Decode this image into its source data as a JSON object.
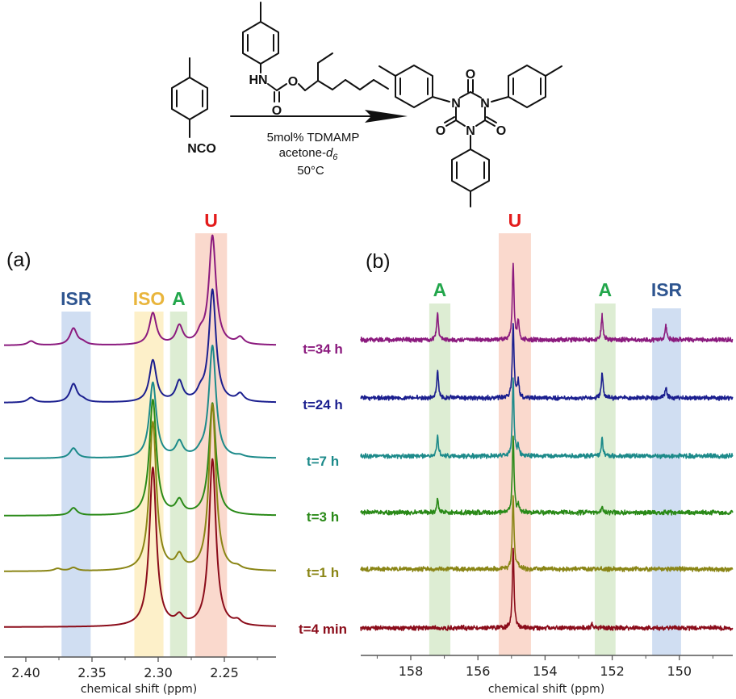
{
  "scheme": {
    "reactant_label": "NCO",
    "carbamate_atoms": {
      "nh": "HN",
      "o_ester": "O",
      "o_carbonyl": "O"
    },
    "product_atoms": {
      "n": "N",
      "o": "O"
    },
    "conditions": [
      "5mol% TDMAMP",
      "acetone-",
      "50°C"
    ],
    "solvent_subscript": "d",
    "solvent_subscript_index": "6"
  },
  "colors": {
    "ISR": "#2e5590",
    "ISO": "#e9b53c",
    "A": "#22a64b",
    "U": "#e31b1b",
    "ISR_band": "#c8d8f0",
    "ISO_band": "#fdedbf",
    "A_band": "#d7eacb",
    "U_band": "#f9d2c4"
  },
  "time_labels": [
    {
      "label": "t=34 h",
      "color": "#8b1a7e"
    },
    {
      "label": "t=24 h",
      "color": "#1b1f8f"
    },
    {
      "label": "t=7 h",
      "color": "#1c8a8a"
    },
    {
      "label": "t=3 h",
      "color": "#2a8a18"
    },
    {
      "label": "t=1 h",
      "color": "#8a8515"
    },
    {
      "label": "t=4 min",
      "color": "#8b0c1a"
    }
  ],
  "chart_data": [
    {
      "type": "line",
      "panel_label": "(a)",
      "xlabel": "chemical shift (ppm)",
      "ylabel": "",
      "xlim": [
        2.4165,
        2.211
      ],
      "x_reversed": true,
      "y_axis_shown": false,
      "ticks": [
        "2.40",
        "2.35",
        "2.30",
        "2.25"
      ],
      "tick_values": [
        2.4,
        2.35,
        2.3,
        2.25
      ],
      "minor_tick_values": [
        2.375,
        2.325,
        2.275,
        2.225
      ],
      "regions": [
        {
          "label": "ISR",
          "range": [
            2.373,
            2.351
          ],
          "color_key": "ISR"
        },
        {
          "label": "ISO",
          "range": [
            2.318,
            2.296
          ],
          "color_key": "ISO"
        },
        {
          "label": "A",
          "range": [
            2.291,
            2.278
          ],
          "color_key": "A"
        },
        {
          "label": "U",
          "range": [
            2.272,
            2.248
          ],
          "color_key": "U"
        }
      ],
      "peak_width_ppm": 0.0032,
      "series": [
        {
          "name": "t=34 h",
          "peaks": [
            [
              2.259,
              65
            ],
            [
              2.304,
              19
            ],
            [
              2.284,
              11
            ],
            [
              2.364,
              10
            ],
            [
              2.268,
              5
            ],
            [
              2.396,
              2.5
            ],
            [
              2.238,
              4
            ],
            [
              2.357,
              1.5
            ]
          ]
        },
        {
          "name": "t=24 h",
          "peaks": [
            [
              2.259,
              67
            ],
            [
              2.304,
              25
            ],
            [
              2.284,
              12
            ],
            [
              2.364,
              11
            ],
            [
              2.268,
              4.5
            ],
            [
              2.396,
              3
            ],
            [
              2.238,
              4.5
            ],
            [
              2.357,
              1.5
            ]
          ]
        },
        {
          "name": "t=7 h",
          "peaks": [
            [
              2.259,
              67
            ],
            [
              2.304,
              45
            ],
            [
              2.284,
              9
            ],
            [
              2.364,
              6
            ],
            [
              2.268,
              2
            ],
            [
              2.238,
              1
            ]
          ]
        },
        {
          "name": "t=3 h",
          "peaks": [
            [
              2.259,
              67
            ],
            [
              2.304,
              69
            ],
            [
              2.284,
              8
            ],
            [
              2.364,
              4.5
            ]
          ]
        },
        {
          "name": "t=1 h",
          "peaks": [
            [
              2.259,
              99.5
            ],
            [
              2.304,
              89
            ],
            [
              2.284,
              8
            ],
            [
              2.364,
              2
            ],
            [
              2.376,
              1.5
            ],
            [
              2.24,
              1.5
            ]
          ]
        },
        {
          "name": "t=4 min",
          "peaks": [
            [
              2.259,
              100
            ],
            [
              2.304,
              95
            ],
            [
              2.284,
              5
            ],
            [
              2.24,
              2.5
            ]
          ]
        }
      ]
    },
    {
      "type": "line",
      "panel_label": "(b)",
      "xlabel": "chemical shift (ppm)",
      "ylabel": "",
      "xlim": [
        159.5,
        148.4
      ],
      "x_reversed": true,
      "y_axis_shown": false,
      "ticks": [
        "158",
        "156",
        "154",
        "152",
        "150"
      ],
      "tick_values": [
        158,
        156,
        154,
        152,
        150
      ],
      "minor_tick_values": [
        159,
        157,
        155,
        153,
        151,
        149
      ],
      "regions": [
        {
          "label": "A",
          "range": [
            157.45,
            156.82
          ],
          "color_key": "A"
        },
        {
          "label": "U",
          "range": [
            155.38,
            154.42
          ],
          "color_key": "U"
        },
        {
          "label": "A",
          "range": [
            152.52,
            151.9
          ],
          "color_key": "A"
        },
        {
          "label": "ISR",
          "range": [
            150.81,
            149.95
          ],
          "color_key": "ISR"
        }
      ],
      "peak_width_ppm": 0.03,
      "noise_level": 2.2,
      "series": [
        {
          "name": "t=34 h",
          "peaks": [
            [
              154.95,
              94
            ],
            [
              154.8,
              22
            ],
            [
              157.2,
              33
            ],
            [
              152.3,
              30
            ],
            [
              150.4,
              18
            ]
          ]
        },
        {
          "name": "t=24 h",
          "peaks": [
            [
              154.95,
              93
            ],
            [
              154.8,
              20
            ],
            [
              157.2,
              35
            ],
            [
              152.3,
              30
            ],
            [
              150.4,
              14
            ]
          ]
        },
        {
          "name": "t=7 h",
          "peaks": [
            [
              154.95,
              95
            ],
            [
              154.8,
              12
            ],
            [
              157.2,
              24
            ],
            [
              152.3,
              21
            ]
          ]
        },
        {
          "name": "t=3 h",
          "peaks": [
            [
              154.95,
              95
            ],
            [
              154.8,
              8
            ],
            [
              157.2,
              17
            ],
            [
              152.3,
              6
            ]
          ]
        },
        {
          "name": "t=1 h",
          "peaks": [
            [
              154.95,
              90
            ],
            [
              154.8,
              5
            ]
          ]
        },
        {
          "name": "t=4 min",
          "peaks": [
            [
              154.95,
              98
            ],
            [
              152.6,
              5
            ]
          ]
        }
      ]
    }
  ]
}
